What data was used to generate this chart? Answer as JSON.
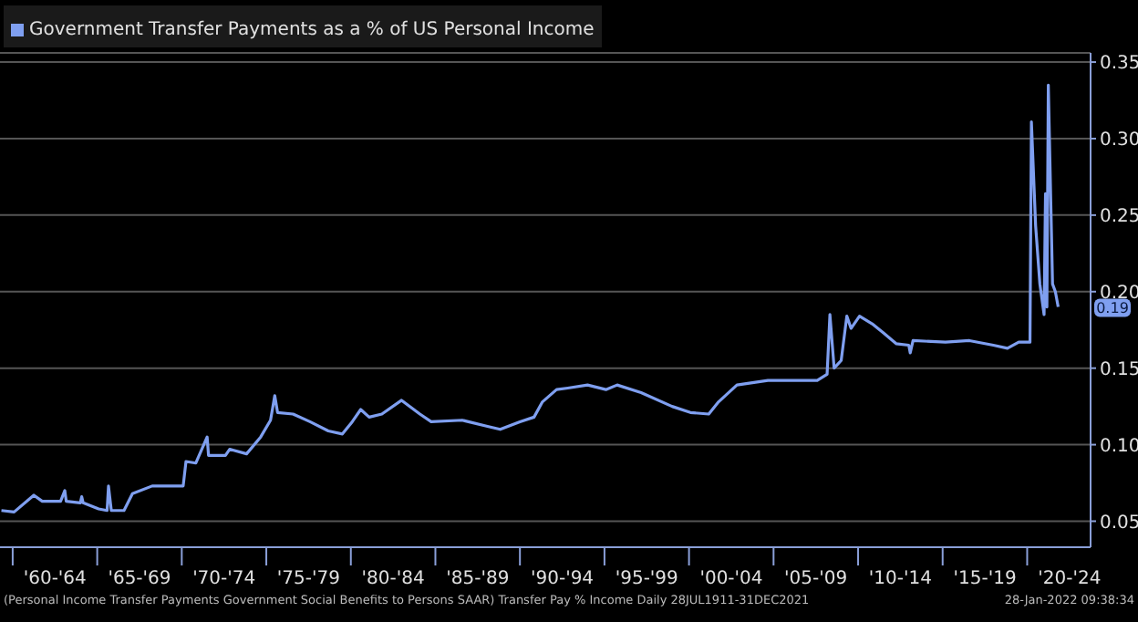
{
  "chart_data": {
    "type": "line",
    "x": [
      "1959-05",
      "1960-02",
      "1961-04",
      "1961-10",
      "1962-11",
      "1963-02",
      "1963-03",
      "1964-01",
      "1964-02",
      "1964-03",
      "1965-02",
      "1965-08",
      "1965-09",
      "1965-11",
      "1966-08",
      "1967-02",
      "1968-04",
      "1970-02",
      "1970-04",
      "1970-11",
      "1971-07",
      "1971-08",
      "1972-08",
      "1972-11",
      "1973-11",
      "1974-09",
      "1975-04",
      "1975-07",
      "1975-09",
      "1976-08",
      "1977-08",
      "1978-09",
      "1979-07",
      "1980-02",
      "1980-08",
      "1981-02",
      "1981-11",
      "1983-01",
      "1984-02",
      "1984-10",
      "1986-08",
      "1988-02",
      "1988-11",
      "1990-01",
      "1990-11",
      "1991-05",
      "1992-03",
      "1992-11",
      "1994-01",
      "1995-02",
      "1995-10",
      "1997-03",
      "1999-01",
      "2000-02",
      "2001-03",
      "2001-10",
      "2002-11",
      "2004-09",
      "2006-08",
      "2007-08",
      "2008-03",
      "2008-05",
      "2008-08",
      "2009-01",
      "2009-05",
      "2009-08",
      "2010-02",
      "2010-11",
      "2011-07",
      "2012-04",
      "2013-01",
      "2013-02",
      "2013-04",
      "2015-03",
      "2016-08",
      "2018-01",
      "2018-11",
      "2019-07",
      "2020-03",
      "2020-04",
      "2020-07",
      "2020-10",
      "2021-01",
      "2021-02",
      "2021-03",
      "2021-04",
      "2021-07",
      "2021-09",
      "2021-11"
    ],
    "series": [
      {
        "name": "Government Transfer Payments as a % of US Personal Income",
        "color": "#7f9ff0",
        "values": [
          0.057,
          0.056,
          0.067,
          0.063,
          0.063,
          0.07,
          0.063,
          0.062,
          0.066,
          0.062,
          0.058,
          0.057,
          0.073,
          0.057,
          0.057,
          0.068,
          0.073,
          0.073,
          0.089,
          0.088,
          0.105,
          0.093,
          0.093,
          0.097,
          0.094,
          0.105,
          0.116,
          0.132,
          0.121,
          0.12,
          0.115,
          0.109,
          0.107,
          0.115,
          0.123,
          0.118,
          0.12,
          0.129,
          0.12,
          0.115,
          0.116,
          0.112,
          0.11,
          0.115,
          0.118,
          0.128,
          0.136,
          0.137,
          0.139,
          0.136,
          0.139,
          0.134,
          0.125,
          0.121,
          0.12,
          0.128,
          0.139,
          0.142,
          0.142,
          0.142,
          0.146,
          0.185,
          0.15,
          0.155,
          0.184,
          0.176,
          0.184,
          0.179,
          0.173,
          0.166,
          0.165,
          0.16,
          0.168,
          0.167,
          0.168,
          0.165,
          0.163,
          0.167,
          0.167,
          0.311,
          0.243,
          0.205,
          0.185,
          0.264,
          0.19,
          0.335,
          0.205,
          0.2,
          0.19
        ]
      }
    ],
    "xlim": [
      "1959-04",
      "2023-10"
    ],
    "xticks": [
      {
        "value": "1960-01",
        "label": null
      },
      {
        "value": "1962-07",
        "label": "'60-'64"
      },
      {
        "value": "1965-01",
        "label": null
      },
      {
        "value": "1967-07",
        "label": "'65-'69"
      },
      {
        "value": "1970-01",
        "label": null
      },
      {
        "value": "1972-07",
        "label": "'70-'74"
      },
      {
        "value": "1975-01",
        "label": null
      },
      {
        "value": "1977-07",
        "label": "'75-'79"
      },
      {
        "value": "1980-01",
        "label": null
      },
      {
        "value": "1982-07",
        "label": "'80-'84"
      },
      {
        "value": "1985-01",
        "label": null
      },
      {
        "value": "1987-07",
        "label": "'85-'89"
      },
      {
        "value": "1990-01",
        "label": null
      },
      {
        "value": "1992-07",
        "label": "'90-'94"
      },
      {
        "value": "1995-01",
        "label": null
      },
      {
        "value": "1997-07",
        "label": "'95-'99"
      },
      {
        "value": "2000-01",
        "label": null
      },
      {
        "value": "2002-07",
        "label": "'00-'04"
      },
      {
        "value": "2005-01",
        "label": null
      },
      {
        "value": "2007-07",
        "label": "'05-'09"
      },
      {
        "value": "2010-01",
        "label": null
      },
      {
        "value": "2012-07",
        "label": "'10-'14"
      },
      {
        "value": "2015-01",
        "label": null
      },
      {
        "value": "2017-07",
        "label": "'15-'19"
      },
      {
        "value": "2020-01",
        "label": null
      },
      {
        "value": "2022-07",
        "label": "'20-'24"
      }
    ],
    "ylim": [
      0.033,
      0.356
    ],
    "yticks": [
      {
        "value": 0.05,
        "label": "0.05"
      },
      {
        "value": 0.1,
        "label": "0.10"
      },
      {
        "value": 0.15,
        "label": "0.15"
      },
      {
        "value": 0.2,
        "label": "0.20"
      },
      {
        "value": 0.25,
        "label": "0.25"
      },
      {
        "value": 0.3,
        "label": "0.30"
      },
      {
        "value": 0.35,
        "label": "0.35"
      }
    ],
    "grid": "y",
    "legend": "top left",
    "marker": "none",
    "line_style": "solid",
    "annotations": [
      {
        "text": "0.19",
        "y": 0.19
      },
      "(Personal Income Transfer Payments Government Social Benefits to Persons SAAR) Transfer Pay % Income  Daily 28JUL1911-31DEC2021",
      "28-Jan-2022 09:38:34"
    ]
  }
}
